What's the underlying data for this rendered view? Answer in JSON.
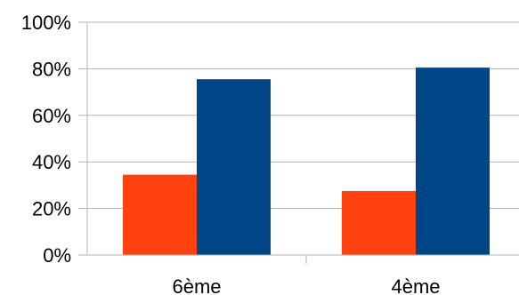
{
  "chart_data": {
    "type": "bar",
    "categories": [
      "6ème",
      "4ème"
    ],
    "series": [
      {
        "values": [
          34.5,
          27.5
        ],
        "color": "#FF420E"
      },
      {
        "values": [
          75.5,
          80.5
        ],
        "color": "#004586"
      }
    ],
    "ylim": [
      0,
      100
    ],
    "y_ticks": [
      0,
      20,
      40,
      60,
      80,
      100
    ],
    "y_tick_labels": [
      "0%",
      "20%",
      "40%",
      "60%",
      "80%",
      "100%"
    ],
    "grid": true,
    "legend": "none",
    "colors": {
      "grid": "#b3b3b3",
      "axis": "#b3b3b3",
      "text": "#000000",
      "background": "#ffffff"
    }
  }
}
